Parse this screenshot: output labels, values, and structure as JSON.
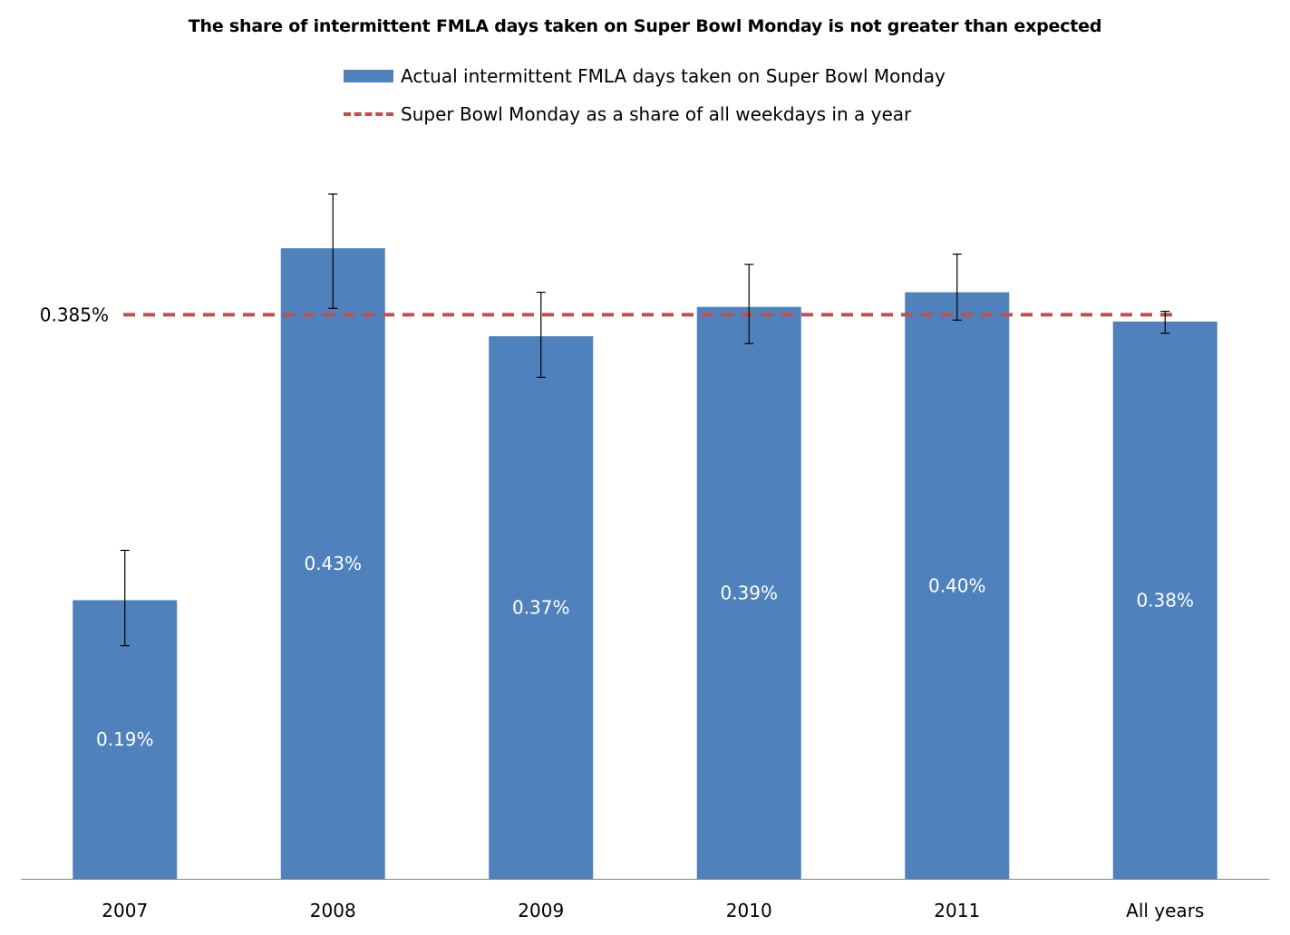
{
  "chart_data": {
    "type": "bar",
    "title": "The share of intermittent FMLA days taken on Super Bowl Monday is not greater than expected",
    "categories": [
      "2007",
      "2008",
      "2009",
      "2010",
      "2011",
      "All years"
    ],
    "series": [
      {
        "name": "Actual intermittent FMLA days taken on Super Bowl Monday",
        "values": [
          0.19,
          0.43,
          0.37,
          0.39,
          0.4,
          0.38
        ],
        "value_labels": [
          "0.19%",
          "0.43%",
          "0.37%",
          "0.39%",
          "0.40%",
          "0.38%"
        ],
        "error_low": [
          0.159,
          0.389,
          0.342,
          0.365,
          0.381,
          0.372
        ],
        "error_high": [
          0.224,
          0.467,
          0.4,
          0.419,
          0.426,
          0.387
        ],
        "color": "#4f81bd"
      }
    ],
    "reference_line": {
      "name": "Super Bowl Monday as a share of all weekdays in a year",
      "value": 0.385,
      "label": "0.385%",
      "color": "#c0504d",
      "style": "dashed"
    },
    "xlabel": "",
    "ylabel": "",
    "ylim": [
      0,
      0.48
    ],
    "y_axis_visible": false,
    "grid": false,
    "legend_position": "top-center"
  }
}
